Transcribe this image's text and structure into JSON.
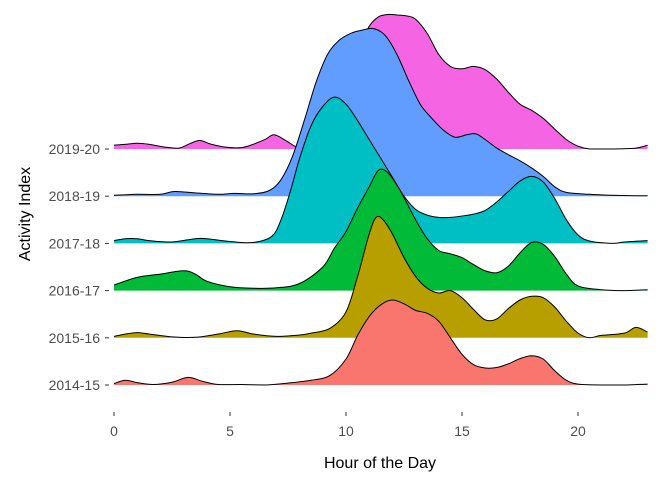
{
  "chart_data": {
    "type": "area",
    "subtype": "ridgeline",
    "title": "",
    "xlabel": "Hour of the Day",
    "ylabel": "Activity Index",
    "xlim": [
      0,
      23
    ],
    "x_ticks": [
      0,
      5,
      10,
      15,
      20
    ],
    "grid": false,
    "legend": "none",
    "series": [
      {
        "name": "2014-15",
        "color": "#F8766D",
        "points": [
          [
            0,
            0.03
          ],
          [
            0.5,
            0.1
          ],
          [
            1,
            0.05
          ],
          [
            1.7,
            0.01
          ],
          [
            2.5,
            0.06
          ],
          [
            3.2,
            0.16
          ],
          [
            3.8,
            0.08
          ],
          [
            4.5,
            0.01
          ],
          [
            5.5,
            0.01
          ],
          [
            6.5,
            0.0
          ],
          [
            7.5,
            0.04
          ],
          [
            8.5,
            0.1
          ],
          [
            9.3,
            0.2
          ],
          [
            10,
            0.55
          ],
          [
            10.5,
            1.05
          ],
          [
            11,
            1.45
          ],
          [
            11.5,
            1.7
          ],
          [
            12,
            1.8
          ],
          [
            12.5,
            1.72
          ],
          [
            13,
            1.58
          ],
          [
            13.5,
            1.52
          ],
          [
            14,
            1.35
          ],
          [
            14.5,
            1.0
          ],
          [
            15,
            0.65
          ],
          [
            15.5,
            0.43
          ],
          [
            16,
            0.36
          ],
          [
            16.5,
            0.37
          ],
          [
            17,
            0.45
          ],
          [
            17.5,
            0.56
          ],
          [
            18,
            0.62
          ],
          [
            18.5,
            0.55
          ],
          [
            19,
            0.3
          ],
          [
            19.5,
            0.1
          ],
          [
            20,
            0.02
          ],
          [
            21,
            0.0
          ],
          [
            22,
            0.0
          ],
          [
            23,
            0.02
          ]
        ]
      },
      {
        "name": "2015-16",
        "color": "#B79F00",
        "points": [
          [
            0,
            0.03
          ],
          [
            0.5,
            0.08
          ],
          [
            1,
            0.11
          ],
          [
            1.5,
            0.08
          ],
          [
            2.5,
            0.02
          ],
          [
            3.5,
            0.01
          ],
          [
            4.5,
            0.08
          ],
          [
            5.3,
            0.15
          ],
          [
            6,
            0.08
          ],
          [
            7,
            0.03
          ],
          [
            8,
            0.06
          ],
          [
            8.5,
            0.1
          ],
          [
            9.3,
            0.2
          ],
          [
            10,
            0.55
          ],
          [
            10.5,
            1.3
          ],
          [
            11,
            2.2
          ],
          [
            11.3,
            2.55
          ],
          [
            11.6,
            2.5
          ],
          [
            12,
            2.2
          ],
          [
            12.5,
            1.7
          ],
          [
            13,
            1.3
          ],
          [
            13.5,
            1.05
          ],
          [
            14,
            0.95
          ],
          [
            14.5,
            1.0
          ],
          [
            15,
            0.85
          ],
          [
            15.5,
            0.6
          ],
          [
            16,
            0.38
          ],
          [
            16.5,
            0.4
          ],
          [
            17,
            0.62
          ],
          [
            17.5,
            0.8
          ],
          [
            18,
            0.88
          ],
          [
            18.5,
            0.85
          ],
          [
            19,
            0.65
          ],
          [
            19.5,
            0.35
          ],
          [
            20,
            0.1
          ],
          [
            20.5,
            0.0
          ],
          [
            21,
            0.05
          ],
          [
            22,
            0.1
          ],
          [
            22.5,
            0.22
          ],
          [
            23,
            0.12
          ]
        ]
      },
      {
        "name": "2016-17",
        "color": "#00BA38",
        "points": [
          [
            0,
            0.12
          ],
          [
            1,
            0.28
          ],
          [
            2,
            0.35
          ],
          [
            3,
            0.42
          ],
          [
            3.5,
            0.35
          ],
          [
            4,
            0.2
          ],
          [
            5,
            0.08
          ],
          [
            6,
            0.05
          ],
          [
            7,
            0.06
          ],
          [
            8,
            0.15
          ],
          [
            9,
            0.5
          ],
          [
            9.5,
            0.9
          ],
          [
            10,
            1.25
          ],
          [
            10.5,
            1.75
          ],
          [
            11,
            2.2
          ],
          [
            11.4,
            2.55
          ],
          [
            11.8,
            2.5
          ],
          [
            12.3,
            2.15
          ],
          [
            13,
            1.5
          ],
          [
            13.5,
            1.1
          ],
          [
            14,
            0.85
          ],
          [
            14.5,
            0.78
          ],
          [
            15,
            0.7
          ],
          [
            15.5,
            0.55
          ],
          [
            16,
            0.42
          ],
          [
            16.5,
            0.38
          ],
          [
            17,
            0.52
          ],
          [
            17.5,
            0.8
          ],
          [
            18,
            1.02
          ],
          [
            18.5,
            0.98
          ],
          [
            19,
            0.72
          ],
          [
            19.5,
            0.35
          ],
          [
            20,
            0.1
          ],
          [
            21,
            0.02
          ],
          [
            22,
            0.0
          ],
          [
            23,
            0.02
          ]
        ]
      },
      {
        "name": "2017-18",
        "color": "#00BFC4",
        "points": [
          [
            0,
            0.06
          ],
          [
            0.5,
            0.1
          ],
          [
            1,
            0.1
          ],
          [
            1.5,
            0.06
          ],
          [
            2.5,
            0.03
          ],
          [
            3.5,
            0.1
          ],
          [
            4,
            0.1
          ],
          [
            5,
            0.04
          ],
          [
            6,
            0.02
          ],
          [
            6.8,
            0.15
          ],
          [
            7.2,
            0.5
          ],
          [
            7.6,
            1.1
          ],
          [
            8,
            1.8
          ],
          [
            8.5,
            2.5
          ],
          [
            9,
            2.9
          ],
          [
            9.5,
            3.1
          ],
          [
            10,
            2.95
          ],
          [
            10.5,
            2.6
          ],
          [
            11,
            2.2
          ],
          [
            11.5,
            1.8
          ],
          [
            12,
            1.4
          ],
          [
            12.5,
            1.0
          ],
          [
            13,
            0.72
          ],
          [
            13.5,
            0.6
          ],
          [
            14,
            0.55
          ],
          [
            14.5,
            0.55
          ],
          [
            15,
            0.58
          ],
          [
            15.5,
            0.62
          ],
          [
            16,
            0.7
          ],
          [
            16.5,
            0.88
          ],
          [
            17,
            1.1
          ],
          [
            17.5,
            1.32
          ],
          [
            18,
            1.42
          ],
          [
            18.5,
            1.3
          ],
          [
            19,
            0.95
          ],
          [
            19.5,
            0.5
          ],
          [
            20,
            0.18
          ],
          [
            20.5,
            0.05
          ],
          [
            21.5,
            0.0
          ],
          [
            22,
            0.03
          ],
          [
            23,
            0.06
          ]
        ]
      },
      {
        "name": "2018-19",
        "color": "#619CFF",
        "points": [
          [
            0,
            0.02
          ],
          [
            0.5,
            0.03
          ],
          [
            1,
            0.04
          ],
          [
            2,
            0.04
          ],
          [
            2.6,
            0.1
          ],
          [
            3.5,
            0.07
          ],
          [
            4.5,
            0.04
          ],
          [
            5.2,
            0.06
          ],
          [
            6,
            0.05
          ],
          [
            6.7,
            0.12
          ],
          [
            7.2,
            0.35
          ],
          [
            7.7,
            0.85
          ],
          [
            8.2,
            1.6
          ],
          [
            8.7,
            2.4
          ],
          [
            9.2,
            3.0
          ],
          [
            9.7,
            3.3
          ],
          [
            10.2,
            3.45
          ],
          [
            10.7,
            3.52
          ],
          [
            11.2,
            3.55
          ],
          [
            11.7,
            3.4
          ],
          [
            12.2,
            3.0
          ],
          [
            12.7,
            2.45
          ],
          [
            13.2,
            1.95
          ],
          [
            13.7,
            1.65
          ],
          [
            14.2,
            1.4
          ],
          [
            14.7,
            1.25
          ],
          [
            15.2,
            1.3
          ],
          [
            15.6,
            1.32
          ],
          [
            16,
            1.2
          ],
          [
            16.5,
            1.02
          ],
          [
            17,
            0.88
          ],
          [
            17.5,
            0.75
          ],
          [
            18,
            0.6
          ],
          [
            18.5,
            0.42
          ],
          [
            19,
            0.2
          ],
          [
            19.5,
            0.08
          ],
          [
            20.5,
            0.04
          ],
          [
            21.5,
            0.02
          ],
          [
            22.5,
            0.01
          ],
          [
            23,
            0.01
          ]
        ]
      },
      {
        "name": "2019-20",
        "color": "#F564E3",
        "points": [
          [
            0,
            0.08
          ],
          [
            0.5,
            0.1
          ],
          [
            1,
            0.12
          ],
          [
            1.5,
            0.1
          ],
          [
            2.2,
            0.04
          ],
          [
            2.8,
            0.02
          ],
          [
            3.3,
            0.12
          ],
          [
            3.7,
            0.18
          ],
          [
            4.2,
            0.1
          ],
          [
            4.8,
            0.04
          ],
          [
            5.5,
            0.03
          ],
          [
            6,
            0.1
          ],
          [
            6.5,
            0.2
          ],
          [
            6.9,
            0.3
          ],
          [
            7.4,
            0.18
          ],
          [
            7.8,
            0.06
          ],
          [
            8.2,
            0.0
          ],
          [
            9,
            0.0
          ],
          [
            9.5,
            0.3
          ],
          [
            10,
            1.0
          ],
          [
            10.3,
            1.6
          ],
          [
            10.7,
            2.25
          ],
          [
            11,
            2.6
          ],
          [
            11.4,
            2.8
          ],
          [
            11.8,
            2.85
          ],
          [
            12.2,
            2.84
          ],
          [
            12.6,
            2.82
          ],
          [
            13,
            2.75
          ],
          [
            13.5,
            2.45
          ],
          [
            14,
            2.0
          ],
          [
            14.5,
            1.75
          ],
          [
            15,
            1.7
          ],
          [
            15.5,
            1.75
          ],
          [
            16,
            1.68
          ],
          [
            16.5,
            1.48
          ],
          [
            17,
            1.2
          ],
          [
            17.5,
            0.95
          ],
          [
            18,
            0.82
          ],
          [
            18.5,
            0.65
          ],
          [
            19,
            0.42
          ],
          [
            19.5,
            0.2
          ],
          [
            20,
            0.06
          ],
          [
            20.5,
            0.0
          ],
          [
            21.5,
            0.0
          ],
          [
            22.5,
            0.02
          ],
          [
            23,
            0.08
          ]
        ]
      }
    ]
  }
}
